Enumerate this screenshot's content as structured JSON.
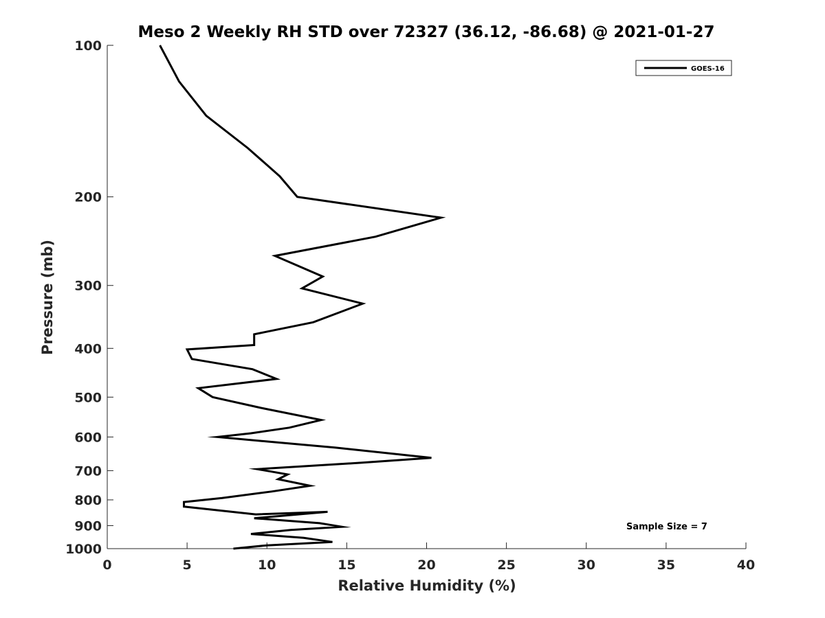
{
  "chart_data": {
    "type": "line",
    "title": "Meso 2 Weekly RH STD over 72327 (36.12, -86.68) @ 2021-01-27",
    "xlabel": "Relative Humidity (%)",
    "ylabel": "Pressure (mb)",
    "xlim": [
      0,
      40
    ],
    "ylim": [
      100,
      1000
    ],
    "yscale": "log",
    "y_reversed": true,
    "grid": false,
    "xticks": [
      0,
      5,
      10,
      15,
      20,
      25,
      30,
      35,
      40
    ],
    "yticks": [
      100,
      200,
      300,
      400,
      500,
      600,
      700,
      800,
      900,
      1000
    ],
    "legend_position": "top-right",
    "annotation": "Sample Size = 7",
    "series": [
      {
        "name": "GOES-16",
        "color": "#000000",
        "x": [
          3.3,
          4.5,
          6.2,
          8.8,
          10.8,
          11.9,
          20.9,
          16.8,
          10.5,
          13.5,
          12.2,
          16.0,
          12.9,
          9.2,
          9.2,
          5.0,
          5.3,
          9.1,
          10.6,
          5.7,
          6.6,
          9.6,
          13.4,
          11.4,
          9.0,
          6.9,
          14.3,
          20.3,
          15.9,
          9.4,
          11.3,
          10.7,
          12.7,
          10.3,
          7.2,
          4.8,
          4.8,
          9.3,
          13.8,
          9.2,
          13.3,
          14.7,
          11.5,
          9.0,
          12.3,
          14.1,
          10.0,
          7.9
        ],
        "y": [
          100,
          118,
          138,
          160,
          182,
          200,
          220,
          240,
          262,
          288,
          304,
          326,
          355,
          375,
          394,
          402,
          420,
          440,
          460,
          480,
          500,
          525,
          555,
          575,
          590,
          600,
          630,
          660,
          675,
          695,
          712,
          728,
          750,
          770,
          793,
          808,
          825,
          855,
          845,
          870,
          890,
          905,
          918,
          935,
          952,
          970,
          985,
          1000
        ]
      }
    ]
  }
}
